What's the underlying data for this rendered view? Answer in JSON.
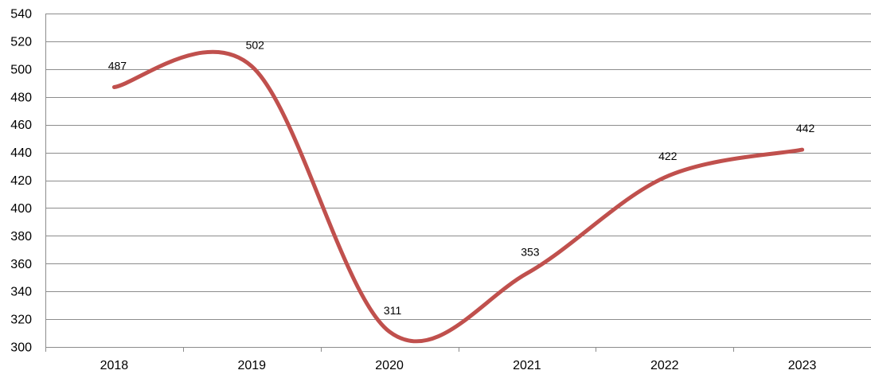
{
  "chart_data": {
    "type": "line",
    "title": "",
    "xlabel": "",
    "ylabel": "",
    "categories": [
      "2018",
      "2019",
      "2020",
      "2021",
      "2022",
      "2023"
    ],
    "series": [
      {
        "values": [
          487,
          502,
          311,
          353,
          422,
          442
        ],
        "color": "#c0504d",
        "smooth": true
      }
    ],
    "ylim": [
      300,
      540
    ],
    "yticks": [
      300,
      320,
      340,
      360,
      380,
      400,
      420,
      440,
      460,
      480,
      500,
      520,
      540
    ],
    "grid": true,
    "legend": "none",
    "data_labels": [
      "487",
      "502",
      "311",
      "353",
      "422",
      "442"
    ]
  }
}
